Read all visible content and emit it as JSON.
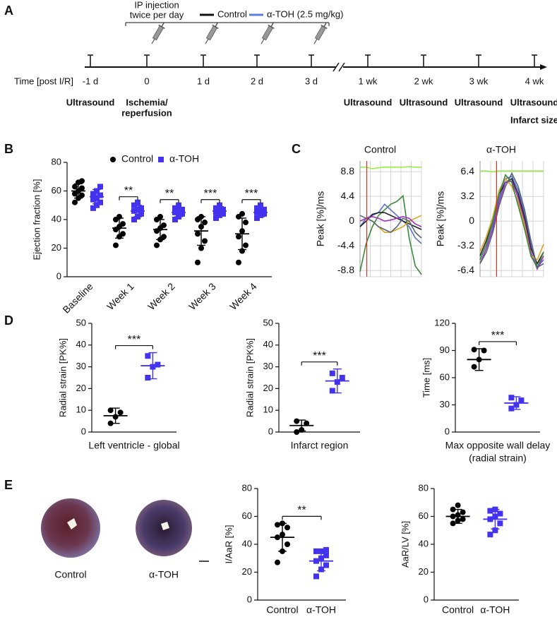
{
  "panels": [
    "A",
    "B",
    "C",
    "D",
    "E"
  ],
  "timeline": {
    "axis_label": "Time [post I/R]",
    "ticks": [
      "-1 d",
      "0",
      "1 d",
      "2 d",
      "3 d",
      "1 wk",
      "2 wk",
      "3 wk",
      "4 wk"
    ],
    "injection": [
      "IP injection",
      "twice per day"
    ],
    "legend": [
      {
        "name": "Control",
        "color": "#111111"
      },
      {
        "name": "α-TOH (2.5 mg/kg)",
        "color": "#5b7fe0"
      }
    ],
    "events": [
      [
        "Ultrasound"
      ],
      [
        "Ischemia/",
        "reperfusion"
      ],
      null,
      null,
      null,
      [
        "Ultrasound"
      ],
      [
        "Ultrasound"
      ],
      [
        "Ultrasound"
      ],
      [
        "Ultrasound",
        "Infarct size"
      ]
    ]
  },
  "panel_e_images": [
    "Control",
    "α-TOH"
  ],
  "chart_data": [
    {
      "type": "dot-grouped",
      "y_label": "Ejection fraction [%]",
      "categories": [
        "Baseline",
        "Week 1",
        "Week 2",
        "Week 3",
        "Week 4"
      ],
      "ylim": [
        0,
        80
      ],
      "yticks": [
        0,
        20,
        40,
        60,
        80
      ],
      "significance": [
        null,
        "**",
        "**",
        "***",
        "***"
      ],
      "series": [
        {
          "name": "Control",
          "color": "#000000",
          "marker": "circle",
          "values": [
            [
              52,
              55,
              57,
              58,
              60,
              62,
              63,
              66,
              67
            ],
            [
              22,
              28,
              30,
              33,
              35,
              37,
              40,
              42
            ],
            [
              22,
              26,
              28,
              32,
              34,
              36,
              40,
              42
            ],
            [
              10,
              20,
              25,
              30,
              35,
              38,
              40,
              42
            ],
            [
              10,
              18,
              22,
              28,
              32,
              38,
              42,
              44
            ]
          ],
          "mean": [
            60,
            34,
            33,
            32,
            30
          ],
          "sd": [
            5,
            7,
            7,
            10,
            11
          ]
        },
        {
          "name": "α-TOH",
          "color": "#4433ee",
          "marker": "square",
          "values": [
            [
              48,
              50,
              52,
              54,
              55,
              57,
              58,
              60,
              63
            ],
            [
              40,
              42,
              44,
              46,
              47,
              48,
              50,
              52
            ],
            [
              40,
              42,
              44,
              45,
              46,
              47,
              48,
              50
            ],
            [
              41,
              43,
              44,
              45,
              46,
              47,
              48,
              50
            ],
            [
              41,
              43,
              44,
              45,
              46,
              47,
              48,
              50
            ]
          ],
          "mean": [
            56,
            46,
            45,
            46,
            45
          ],
          "sd": [
            5,
            4,
            3,
            3,
            3
          ]
        }
      ]
    },
    {
      "type": "line",
      "title": "Control",
      "y_label": "Peak [%]/ms",
      "x": [
        0,
        1,
        2,
        3,
        4,
        5,
        6,
        7,
        8,
        9,
        10
      ],
      "xlim": [
        0,
        10
      ],
      "ylim": [
        -9.9,
        10.7
      ],
      "yticks": [
        8.8,
        4.4,
        0,
        -4.4,
        -8.8
      ],
      "series": [
        {
          "color": "#99ee44",
          "values": [
            9.6,
            9.6,
            9.3,
            9.5,
            9.6,
            9.6,
            9.6,
            9.6,
            9.7,
            9.6,
            9.6
          ]
        },
        {
          "color": "#3a8a3a",
          "values": [
            -9,
            -4,
            -1,
            1,
            2,
            3,
            3.5,
            4.5,
            -3,
            -8,
            -9.5
          ]
        },
        {
          "color": "#5a6fd0",
          "values": [
            -1,
            0.5,
            1,
            1.5,
            3,
            2,
            1,
            0,
            -1,
            -3,
            -4
          ]
        },
        {
          "color": "#222222",
          "values": [
            -1,
            0,
            1.2,
            1.5,
            1.5,
            1,
            0.5,
            0,
            -0.5,
            -1,
            -1.5
          ]
        },
        {
          "color": "#d9a420",
          "values": [
            0,
            0.5,
            0,
            -1,
            -2,
            -2,
            -1.5,
            -1,
            0,
            0.5,
            1
          ]
        },
        {
          "color": "#a030c0",
          "values": [
            0,
            0.5,
            0.8,
            0.5,
            0,
            0.2,
            0.5,
            0.8,
            0.5,
            -0.5,
            -1
          ]
        },
        {
          "color": "#556677",
          "values": [
            1,
            0.5,
            0,
            -1,
            -1.5,
            -2,
            -1,
            0.5,
            0,
            -2,
            -3
          ]
        }
      ]
    },
    {
      "type": "line",
      "title": "α-TOH",
      "y_label": "Peak [%]/ms",
      "x": [
        0,
        1,
        2,
        3,
        4,
        5,
        6,
        7,
        8,
        9,
        10
      ],
      "xlim": [
        0,
        10
      ],
      "ylim": [
        -7.2,
        7.8
      ],
      "yticks": [
        6.4,
        3.2,
        0,
        -3.2,
        -6.4
      ],
      "series": [
        {
          "color": "#99ee44",
          "values": [
            6.5,
            6.5,
            6.4,
            6.5,
            6.5,
            6.5,
            6.5,
            6.5,
            6.5,
            6.5,
            6.5
          ]
        },
        {
          "color": "#5a6fd0",
          "values": [
            -5,
            -3,
            -0.5,
            3,
            5.5,
            5.8,
            4,
            1,
            -3,
            -6,
            -5
          ]
        },
        {
          "color": "#222222",
          "values": [
            -4.5,
            -2.5,
            0,
            3.5,
            5,
            5.5,
            3.5,
            0.5,
            -3.5,
            -5.5,
            -4
          ]
        },
        {
          "color": "#a030c0",
          "values": [
            -5.5,
            -3.5,
            -1,
            2.5,
            5,
            5.2,
            3,
            0,
            -4,
            -6.2,
            -4.5
          ]
        },
        {
          "color": "#d9a420",
          "values": [
            -4,
            -2,
            0.5,
            4,
            5.5,
            4.5,
            2.5,
            -0.5,
            -4.5,
            -5,
            -3
          ]
        },
        {
          "color": "#3a8a3a",
          "values": [
            -5,
            -3,
            0,
            3.5,
            6,
            5,
            2,
            -1,
            -4.5,
            -6,
            -4
          ]
        },
        {
          "color": "#556677",
          "values": [
            -5.5,
            -4,
            -1.5,
            2,
            4.5,
            6.2,
            4.5,
            1.5,
            -2.5,
            -6,
            -5.5
          ]
        }
      ]
    },
    {
      "type": "dot",
      "y_label": "Radial strain [PK%]",
      "x_label": [
        "Left ventricle - global"
      ],
      "ylim": [
        0,
        50
      ],
      "yticks": [
        0,
        10,
        20,
        30,
        40,
        50
      ],
      "significance": "***",
      "groups": [
        {
          "color": "#000000",
          "marker": "circle",
          "values": [
            4,
            7,
            9,
            10
          ],
          "mean": 7.5,
          "sd": 3.5
        },
        {
          "color": "#4433ee",
          "marker": "square",
          "values": [
            25,
            30,
            31,
            35
          ],
          "mean": 30.5,
          "sd": 6
        }
      ]
    },
    {
      "type": "dot",
      "y_label": "Radial strain [PK%]",
      "x_label": [
        "Infarct region"
      ],
      "ylim": [
        0,
        50
      ],
      "yticks": [
        0,
        10,
        20,
        30,
        40,
        50
      ],
      "significance": "***",
      "groups": [
        {
          "color": "#000000",
          "marker": "circle",
          "values": [
            0,
            1,
            4,
            5
          ],
          "mean": 3,
          "sd": 2.5
        },
        {
          "color": "#4433ee",
          "marker": "square",
          "values": [
            19,
            23,
            25,
            27
          ],
          "mean": 23.5,
          "sd": 5.5
        }
      ]
    },
    {
      "type": "dot",
      "y_label": "Time [ms]",
      "x_label": [
        "Max opposite wall delay",
        "(radial strain)"
      ],
      "ylim": [
        0,
        120
      ],
      "yticks": [
        0,
        30,
        60,
        90,
        120
      ],
      "significance": "***",
      "groups": [
        {
          "color": "#000000",
          "marker": "circle",
          "values": [
            72,
            80,
            90,
            91
          ],
          "mean": 80,
          "sd": 12
        },
        {
          "color": "#4433ee",
          "marker": "square",
          "values": [
            26,
            30,
            35,
            38
          ],
          "mean": 32,
          "sd": 7
        }
      ]
    },
    {
      "type": "dot",
      "y_label": "I/AaR [%]",
      "categories": [
        "Control",
        "α-TOH"
      ],
      "ylim": [
        0,
        80
      ],
      "yticks": [
        0,
        20,
        40,
        60,
        80
      ],
      "significance": "**",
      "groups": [
        {
          "color": "#000000",
          "marker": "circle",
          "values": [
            27,
            35,
            40,
            45,
            47,
            52,
            54,
            55
          ],
          "mean": 45,
          "sd": 10
        },
        {
          "color": "#4433ee",
          "marker": "square",
          "values": [
            17,
            22,
            25,
            28,
            30,
            32,
            35,
            35,
            36
          ],
          "mean": 28,
          "sd": 7
        }
      ]
    },
    {
      "type": "dot",
      "y_label": "AaR/LV [%]",
      "categories": [
        "Control",
        "α-TOH"
      ],
      "ylim": [
        0,
        80
      ],
      "yticks": [
        0,
        20,
        40,
        60,
        80
      ],
      "groups": [
        {
          "color": "#000000",
          "marker": "circle",
          "values": [
            55,
            57,
            58,
            60,
            61,
            63,
            65,
            68
          ],
          "mean": 60,
          "sd": 5
        },
        {
          "color": "#4433ee",
          "marker": "square",
          "values": [
            47,
            50,
            55,
            58,
            60,
            62,
            64,
            65
          ],
          "mean": 58,
          "sd": 7
        }
      ]
    }
  ]
}
